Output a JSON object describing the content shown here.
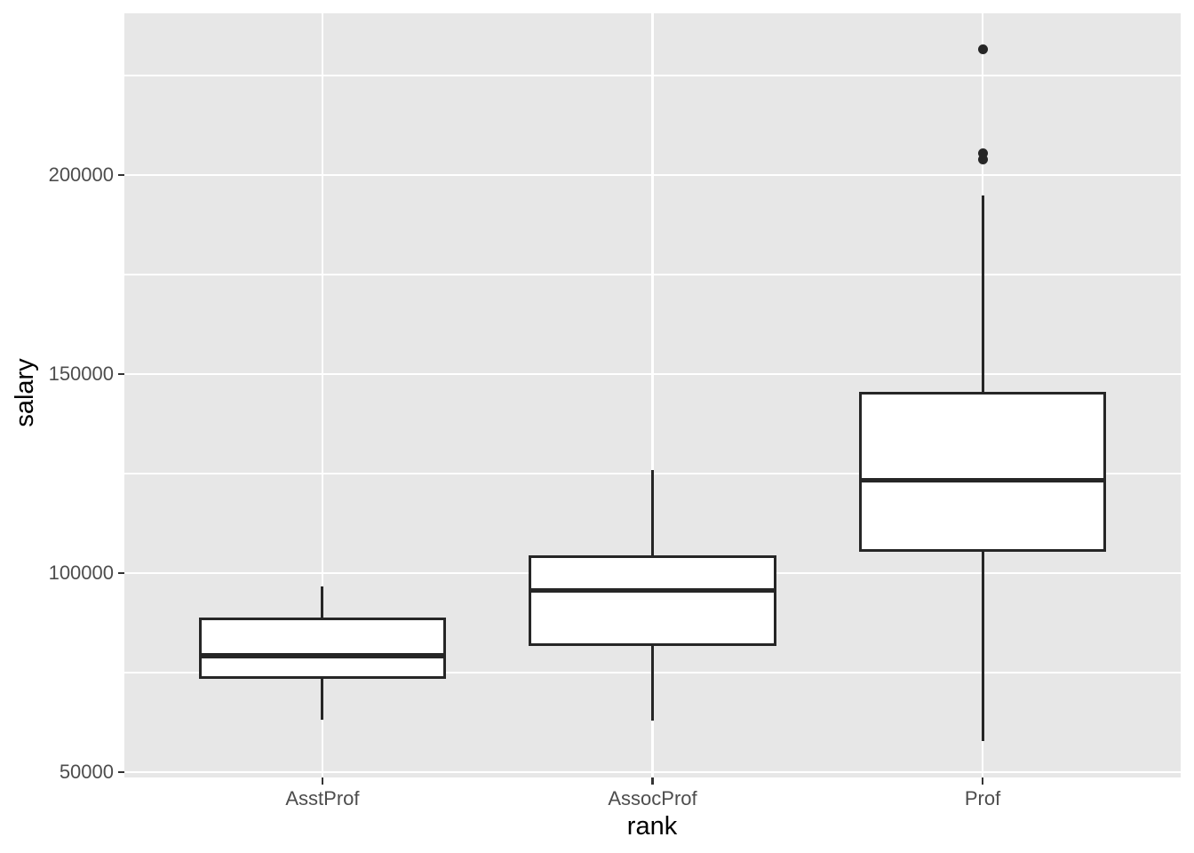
{
  "style": {
    "panel_bg": "#e7e7e7",
    "grid_color": "#ffffff",
    "box_stroke": "#262626",
    "box_fill": "#ffffff",
    "axis_text_color": "#4d4d4d",
    "axis_title_color": "#000000",
    "tick_mark_color": "#333333"
  },
  "chart_data": {
    "type": "boxplot",
    "title": "",
    "xlabel": "rank",
    "ylabel": "salary",
    "categories": [
      "AsstProf",
      "AssocProf",
      "Prof"
    ],
    "y_ticks": [
      {
        "value": 50000,
        "label": "50000"
      },
      {
        "value": 100000,
        "label": "100000"
      },
      {
        "value": 150000,
        "label": "150000"
      },
      {
        "value": 200000,
        "label": "200000"
      }
    ],
    "y_minor_ticks": [
      75000,
      125000,
      175000,
      225000
    ],
    "y_domain": [
      48660,
      240630
    ],
    "grid": "on",
    "legend_position": "none",
    "series": [
      {
        "category": "AsstProf",
        "whisker_low": 63100,
        "q1": 73800,
        "median": 79200,
        "q3": 88400,
        "whisker_high": 96600,
        "outliers": []
      },
      {
        "category": "AssocProf",
        "whisker_low": 62884,
        "q1": 82100,
        "median": 95600,
        "q3": 104100,
        "whisker_high": 126000,
        "outliers": []
      },
      {
        "category": "Prof",
        "whisker_low": 57800,
        "q1": 105800,
        "median": 123300,
        "q3": 145100,
        "whisker_high": 194900,
        "outliers": [
          204000,
          205500,
          231545
        ]
      }
    ]
  }
}
